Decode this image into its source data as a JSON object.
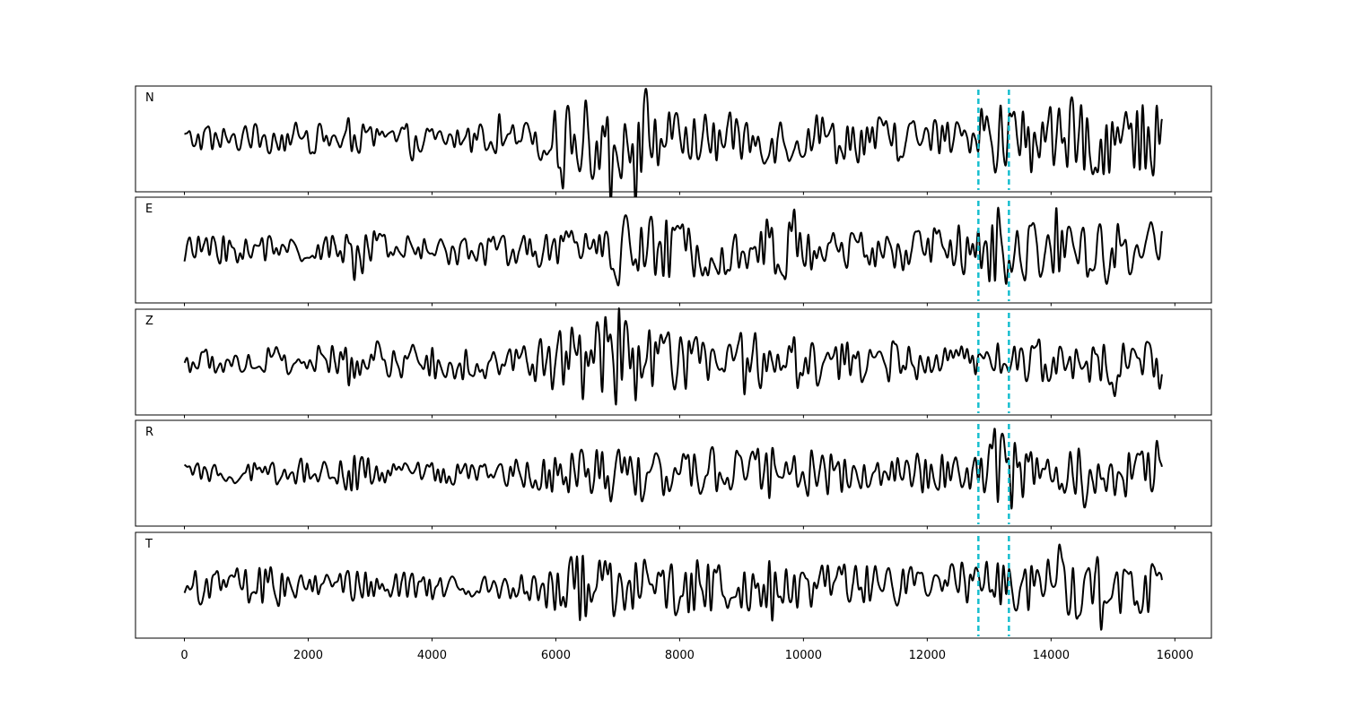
{
  "chart_data": {
    "type": "line",
    "title": "",
    "xlabel": "",
    "ylabel": "",
    "xlim": [
      -790,
      16590
    ],
    "x_ticks": [
      0,
      2000,
      4000,
      6000,
      8000,
      10000,
      12000,
      14000,
      16000
    ],
    "x_tick_labels": [
      "0",
      "2000",
      "4000",
      "6000",
      "8000",
      "10000",
      "12000",
      "14000",
      "16000"
    ],
    "grid": false,
    "trace_color": "#000000",
    "marker_color": "#17becf",
    "marker_lines_x": [
      12826,
      13319
    ],
    "trace_x_range": [
      0,
      15797
    ],
    "y_ticks_visible": false,
    "panels": [
      {
        "label": "N",
        "envelope": [
          [
            0,
            0.25
          ],
          [
            2000,
            0.3
          ],
          [
            4000,
            0.3
          ],
          [
            5500,
            0.35
          ],
          [
            6400,
            0.85
          ],
          [
            7400,
            0.9
          ],
          [
            7800,
            0.55
          ],
          [
            10000,
            0.55
          ],
          [
            12000,
            0.45
          ],
          [
            12800,
            0.35
          ],
          [
            13100,
            1.0
          ],
          [
            13400,
            0.7
          ],
          [
            15000,
            0.8
          ],
          [
            15797,
            0.7
          ]
        ]
      },
      {
        "label": "E",
        "envelope": [
          [
            0,
            0.3
          ],
          [
            2500,
            0.3
          ],
          [
            2900,
            0.55
          ],
          [
            3200,
            0.3
          ],
          [
            6000,
            0.35
          ],
          [
            6800,
            0.7
          ],
          [
            7300,
            0.75
          ],
          [
            9000,
            0.45
          ],
          [
            9500,
            0.8
          ],
          [
            10000,
            0.45
          ],
          [
            12000,
            0.45
          ],
          [
            12800,
            0.6
          ],
          [
            13100,
            1.0
          ],
          [
            13500,
            0.6
          ],
          [
            15797,
            0.6
          ]
        ]
      },
      {
        "label": "Z",
        "envelope": [
          [
            0,
            0.25
          ],
          [
            2000,
            0.35
          ],
          [
            5500,
            0.4
          ],
          [
            6400,
            0.9
          ],
          [
            7200,
            1.0
          ],
          [
            7800,
            0.6
          ],
          [
            10000,
            0.55
          ],
          [
            12000,
            0.35
          ],
          [
            12800,
            0.35
          ],
          [
            13300,
            0.45
          ],
          [
            15797,
            0.45
          ]
        ]
      },
      {
        "label": "R",
        "envelope": [
          [
            0,
            0.2
          ],
          [
            2500,
            0.25
          ],
          [
            2900,
            0.5
          ],
          [
            3200,
            0.2
          ],
          [
            5500,
            0.3
          ],
          [
            6500,
            0.55
          ],
          [
            7200,
            0.7
          ],
          [
            8000,
            0.4
          ],
          [
            9500,
            0.6
          ],
          [
            11000,
            0.35
          ],
          [
            12000,
            0.45
          ],
          [
            12800,
            0.35
          ],
          [
            13100,
            1.0
          ],
          [
            13500,
            0.55
          ],
          [
            15797,
            0.5
          ]
        ]
      },
      {
        "label": "T",
        "envelope": [
          [
            0,
            0.3
          ],
          [
            1700,
            0.45
          ],
          [
            2000,
            0.3
          ],
          [
            5500,
            0.3
          ],
          [
            6500,
            0.9
          ],
          [
            7000,
            0.6
          ],
          [
            9000,
            0.6
          ],
          [
            12000,
            0.4
          ],
          [
            12800,
            0.55
          ],
          [
            13300,
            0.5
          ],
          [
            14500,
            0.7
          ],
          [
            15500,
            0.6
          ],
          [
            15797,
            1.0
          ]
        ]
      }
    ]
  }
}
